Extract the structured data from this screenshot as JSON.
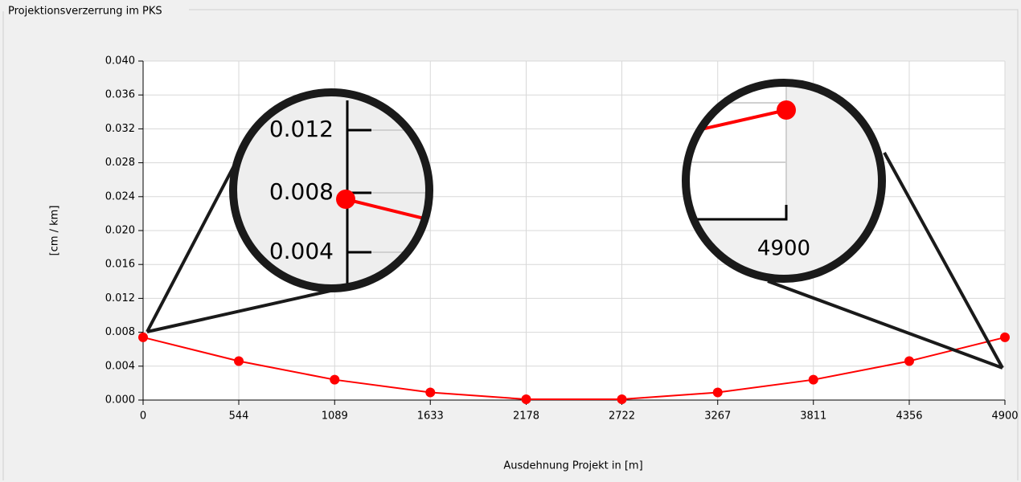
{
  "panel": {
    "title": "Projektionsverzerrung im PKS"
  },
  "chart_data": {
    "type": "line",
    "x_label": "Ausdehnung Projekt in [m]",
    "y_label": "[cm / km]",
    "x": [
      0,
      544,
      1089,
      1633,
      2178,
      2722,
      3267,
      3811,
      4356,
      4900
    ],
    "series": [
      {
        "color": "#ff0000",
        "values": [
          0.0074,
          0.0046,
          0.0024,
          0.0009,
          0.0001,
          0.0001,
          0.0009,
          0.0024,
          0.0046,
          0.0074
        ]
      }
    ],
    "xlim": [
      0,
      4900
    ],
    "xticks": [
      0,
      544,
      1089,
      1633,
      2178,
      2722,
      3267,
      3811,
      4356,
      4900
    ],
    "ylim": [
      0,
      0.04
    ],
    "yticks": [
      {
        "value": 0,
        "label": "0.000"
      },
      {
        "value": 0.004,
        "label": "0.004"
      },
      {
        "value": 0.008,
        "label": "0.008"
      },
      {
        "value": 0.012,
        "label": "0.012"
      },
      {
        "value": 0.016,
        "label": "0.016"
      },
      {
        "value": 0.02,
        "label": "0.020"
      },
      {
        "value": 0.024,
        "label": "0.024"
      },
      {
        "value": 0.028,
        "label": "0.028"
      },
      {
        "value": 0.032,
        "label": "0.032"
      },
      {
        "value": 0.036,
        "label": "0.036"
      },
      {
        "value": 0.04,
        "label": "0.040"
      }
    ],
    "grid": true
  },
  "insets": [
    {
      "labels": [
        "0.012",
        "0.008",
        "0.004"
      ]
    },
    {
      "labels": [
        "4900"
      ]
    }
  ]
}
